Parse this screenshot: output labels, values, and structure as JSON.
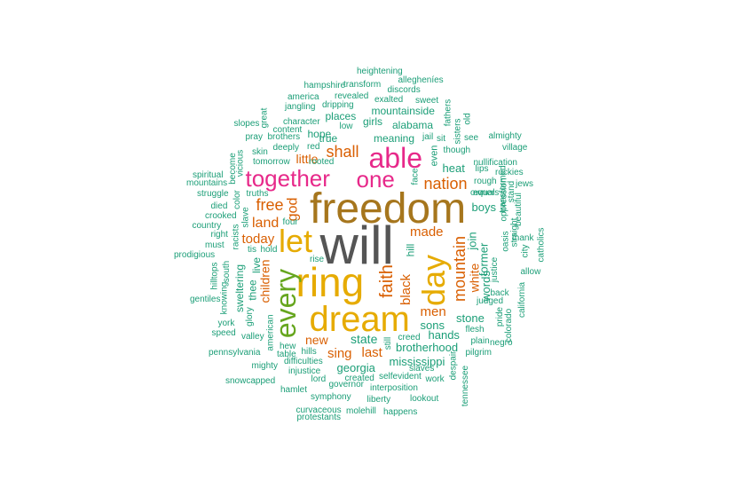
{
  "palette": {
    "teal": "#1b9e77",
    "orange": "#d95f02",
    "magenta": "#e7298a",
    "green": "#66a61e",
    "gold": "#e6ab02",
    "brown": "#a6761d",
    "gray": "#666666"
  },
  "words": [
    {
      "text": "will",
      "color": "#555555"
    },
    {
      "text": "freedom",
      "color": "#a6761d"
    },
    {
      "text": "ring",
      "color": "#e6ab02"
    },
    {
      "text": "dream",
      "color": "#e6ab02"
    },
    {
      "text": "day",
      "color": "#e6ab02"
    },
    {
      "text": "let",
      "color": "#e6ab02"
    },
    {
      "text": "every",
      "color": "#66a61e"
    },
    {
      "text": "able",
      "color": "#e7298a"
    },
    {
      "text": "together",
      "color": "#e7298a"
    },
    {
      "text": "one",
      "color": "#e7298a"
    },
    {
      "text": "nation",
      "color": "#d95f02"
    },
    {
      "text": "shall",
      "color": "#d95f02"
    },
    {
      "text": "faith",
      "color": "#d95f02"
    },
    {
      "text": "mountain",
      "color": "#d95f02"
    },
    {
      "text": "free",
      "color": "#d95f02"
    },
    {
      "text": "god",
      "color": "#d95f02"
    },
    {
      "text": "land",
      "color": "#d95f02"
    },
    {
      "text": "today",
      "color": "#d95f02"
    },
    {
      "text": "little",
      "color": "#d95f02"
    },
    {
      "text": "children",
      "color": "#d95f02"
    },
    {
      "text": "made",
      "color": "#d95f02"
    },
    {
      "text": "black",
      "color": "#d95f02"
    },
    {
      "text": "men",
      "color": "#d95f02"
    },
    {
      "text": "white",
      "color": "#d95f02"
    },
    {
      "text": "new",
      "color": "#d95f02"
    },
    {
      "text": "sing",
      "color": "#d95f02"
    },
    {
      "text": "last",
      "color": "#d95f02"
    },
    {
      "text": "state",
      "color": "#1b9e77"
    },
    {
      "text": "heat",
      "color": "#1b9e77"
    },
    {
      "text": "join",
      "color": "#1b9e77"
    },
    {
      "text": "former",
      "color": "#1b9e77"
    },
    {
      "text": "words",
      "color": "#1b9e77"
    },
    {
      "text": "boys",
      "color": "#1b9e77"
    },
    {
      "text": "stone",
      "color": "#1b9e77"
    },
    {
      "text": "sons",
      "color": "#1b9e77"
    },
    {
      "text": "hands",
      "color": "#1b9e77"
    },
    {
      "text": "brotherhood",
      "color": "#1b9e77"
    },
    {
      "text": "mississippi",
      "color": "#1b9e77"
    },
    {
      "text": "georgia",
      "color": "#1b9e77"
    },
    {
      "text": "hill",
      "color": "#1b9e77"
    },
    {
      "text": "true",
      "color": "#1b9e77"
    },
    {
      "text": "hope",
      "color": "#1b9e77"
    },
    {
      "text": "meaning",
      "color": "#1b9e77"
    },
    {
      "text": "places",
      "color": "#1b9e77"
    },
    {
      "text": "girls",
      "color": "#1b9e77"
    },
    {
      "text": "alabama",
      "color": "#1b9e77"
    },
    {
      "text": "mountainside",
      "color": "#1b9e77"
    },
    {
      "text": "even",
      "color": "#1b9e77"
    },
    {
      "text": "live",
      "color": "#1b9e77"
    },
    {
      "text": "thee",
      "color": "#1b9e77"
    },
    {
      "text": "sweltering",
      "color": "#1b9e77"
    },
    {
      "text": "heightening",
      "color": "#1b9e77"
    },
    {
      "text": "allegheníes",
      "color": "#1b9e77"
    },
    {
      "text": "hampshire",
      "color": "#1b9e77"
    },
    {
      "text": "transform",
      "color": "#1b9e77"
    },
    {
      "text": "america",
      "color": "#1b9e77"
    },
    {
      "text": "revealed",
      "color": "#1b9e77"
    },
    {
      "text": "exalted",
      "color": "#1b9e77"
    },
    {
      "text": "discords",
      "color": "#1b9e77"
    },
    {
      "text": "jangling",
      "color": "#1b9e77"
    },
    {
      "text": "dripping",
      "color": "#1b9e77"
    },
    {
      "text": "sweet",
      "color": "#1b9e77"
    },
    {
      "text": "great",
      "color": "#1b9e77"
    },
    {
      "text": "character",
      "color": "#1b9e77"
    },
    {
      "text": "low",
      "color": "#1b9e77"
    },
    {
      "text": "content",
      "color": "#1b9e77"
    },
    {
      "text": "slopes",
      "color": "#1b9e77"
    },
    {
      "text": "pray",
      "color": "#1b9e77"
    },
    {
      "text": "brothers",
      "color": "#1b9e77"
    },
    {
      "text": "skin",
      "color": "#1b9e77"
    },
    {
      "text": "deeply",
      "color": "#1b9e77"
    },
    {
      "text": "red",
      "color": "#1b9e77"
    },
    {
      "text": "tomorrow",
      "color": "#1b9e77"
    },
    {
      "text": "rooted",
      "color": "#1b9e77"
    },
    {
      "text": "jail",
      "color": "#1b9e77"
    },
    {
      "text": "sit",
      "color": "#1b9e77"
    },
    {
      "text": "fathers",
      "color": "#1b9e77"
    },
    {
      "text": "old",
      "color": "#1b9e77"
    },
    {
      "text": "sisters",
      "color": "#1b9e77"
    },
    {
      "text": "see",
      "color": "#1b9e77"
    },
    {
      "text": "almighty",
      "color": "#1b9e77"
    },
    {
      "text": "though",
      "color": "#1b9e77"
    },
    {
      "text": "village",
      "color": "#1b9e77"
    },
    {
      "text": "nullification",
      "color": "#1b9e77"
    },
    {
      "text": "lips",
      "color": "#1b9e77"
    },
    {
      "text": "rockies",
      "color": "#1b9e77"
    },
    {
      "text": "rough",
      "color": "#1b9e77"
    },
    {
      "text": "owners",
      "color": "#1b9e77"
    },
    {
      "text": "jews",
      "color": "#1b9e77"
    },
    {
      "text": "equal",
      "color": "#1b9e77"
    },
    {
      "text": "face",
      "color": "#1b9e77"
    },
    {
      "text": "become",
      "color": "#1b9e77"
    },
    {
      "text": "vicious",
      "color": "#1b9e77"
    },
    {
      "text": "spiritual",
      "color": "#1b9e77"
    },
    {
      "text": "mountains",
      "color": "#1b9e77"
    },
    {
      "text": "struggle",
      "color": "#1b9e77"
    },
    {
      "text": "truths",
      "color": "#1b9e77"
    },
    {
      "text": "color",
      "color": "#1b9e77"
    },
    {
      "text": "died",
      "color": "#1b9e77"
    },
    {
      "text": "crooked",
      "color": "#1b9e77"
    },
    {
      "text": "slave",
      "color": "#1b9e77"
    },
    {
      "text": "country",
      "color": "#1b9e77"
    },
    {
      "text": "racists",
      "color": "#1b9e77"
    },
    {
      "text": "four",
      "color": "#1b9e77"
    },
    {
      "text": "right",
      "color": "#1b9e77"
    },
    {
      "text": "must",
      "color": "#1b9e77"
    },
    {
      "text": "tis",
      "color": "#1b9e77"
    },
    {
      "text": "hold",
      "color": "#1b9e77"
    },
    {
      "text": "prodigious",
      "color": "#1b9e77"
    },
    {
      "text": "rise",
      "color": "#1b9e77"
    },
    {
      "text": "hilltops",
      "color": "#1b9e77"
    },
    {
      "text": "south",
      "color": "#1b9e77"
    },
    {
      "text": "knowing",
      "color": "#1b9e77"
    },
    {
      "text": "gentiles",
      "color": "#1b9e77"
    },
    {
      "text": "glory",
      "color": "#1b9e77"
    },
    {
      "text": "york",
      "color": "#1b9e77"
    },
    {
      "text": "speed",
      "color": "#1b9e77"
    },
    {
      "text": "american",
      "color": "#1b9e77"
    },
    {
      "text": "valley",
      "color": "#1b9e77"
    },
    {
      "text": "hew",
      "color": "#1b9e77"
    },
    {
      "text": "hills",
      "color": "#1b9e77"
    },
    {
      "text": "pennsylvania",
      "color": "#1b9e77"
    },
    {
      "text": "table",
      "color": "#1b9e77"
    },
    {
      "text": "mighty",
      "color": "#1b9e77"
    },
    {
      "text": "difficulties",
      "color": "#1b9e77"
    },
    {
      "text": "injustice",
      "color": "#1b9e77"
    },
    {
      "text": "snowcapped",
      "color": "#1b9e77"
    },
    {
      "text": "lord",
      "color": "#1b9e77"
    },
    {
      "text": "hamlet",
      "color": "#1b9e77"
    },
    {
      "text": "governor",
      "color": "#1b9e77"
    },
    {
      "text": "created",
      "color": "#1b9e77"
    },
    {
      "text": "selfevident",
      "color": "#1b9e77"
    },
    {
      "text": "work",
      "color": "#1b9e77"
    },
    {
      "text": "slaves",
      "color": "#1b9e77"
    },
    {
      "text": "interposition",
      "color": "#1b9e77"
    },
    {
      "text": "symphony",
      "color": "#1b9e77"
    },
    {
      "text": "liberty",
      "color": "#1b9e77"
    },
    {
      "text": "lookout",
      "color": "#1b9e77"
    },
    {
      "text": "curvaceous",
      "color": "#1b9e77"
    },
    {
      "text": "molehill",
      "color": "#1b9e77"
    },
    {
      "text": "happens",
      "color": "#1b9e77"
    },
    {
      "text": "protestants",
      "color": "#1b9e77"
    },
    {
      "text": "creed",
      "color": "#1b9e77"
    },
    {
      "text": "still",
      "color": "#1b9e77"
    },
    {
      "text": "flesh",
      "color": "#1b9e77"
    },
    {
      "text": "plain",
      "color": "#1b9e77"
    },
    {
      "text": "negro",
      "color": "#1b9e77"
    },
    {
      "text": "pilgrim",
      "color": "#1b9e77"
    },
    {
      "text": "despair",
      "color": "#1b9e77"
    },
    {
      "text": "tennessee",
      "color": "#1b9e77"
    },
    {
      "text": "judged",
      "color": "#1b9e77"
    },
    {
      "text": "back",
      "color": "#1b9e77"
    },
    {
      "text": "pride",
      "color": "#1b9e77"
    },
    {
      "text": "colorado",
      "color": "#1b9e77"
    },
    {
      "text": "california",
      "color": "#1b9e77"
    },
    {
      "text": "allow",
      "color": "#1b9e77"
    },
    {
      "text": "justice",
      "color": "#1b9e77"
    },
    {
      "text": "oasis",
      "color": "#1b9e77"
    },
    {
      "text": "straight",
      "color": "#1b9e77"
    },
    {
      "text": "city",
      "color": "#1b9e77"
    },
    {
      "text": "thank",
      "color": "#1b9e77"
    },
    {
      "text": "beautiful",
      "color": "#1b9e77"
    },
    {
      "text": "catholics",
      "color": "#1b9e77"
    },
    {
      "text": "oppression",
      "color": "#1b9e77"
    },
    {
      "text": "transformed",
      "color": "#1b9e77"
    },
    {
      "text": "stand",
      "color": "#1b9e77"
    }
  ]
}
